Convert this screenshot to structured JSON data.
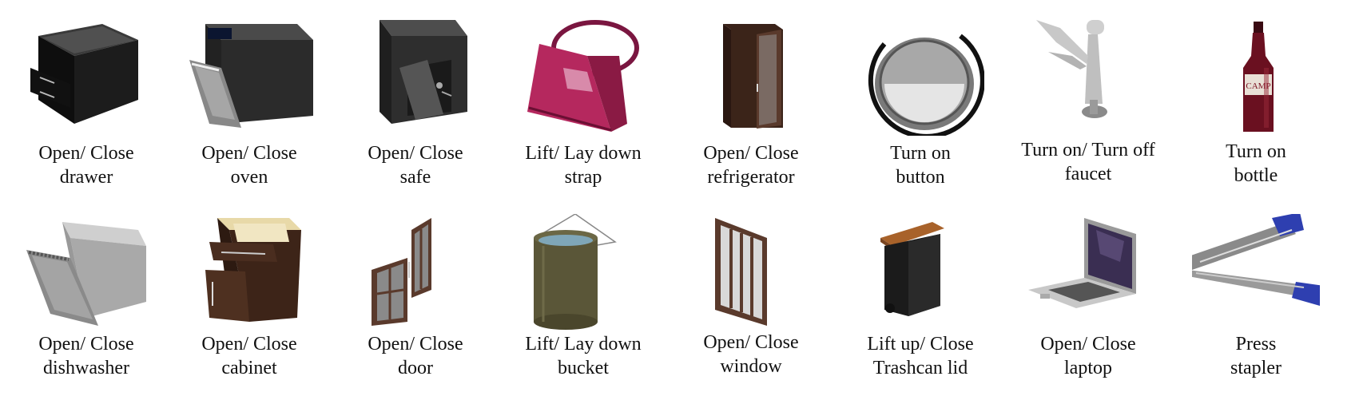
{
  "rows": [
    [
      {
        "id": "drawer",
        "line1": "Open/ Close",
        "line2": "drawer",
        "icon": "drawer-icon"
      },
      {
        "id": "oven",
        "line1": "Open/ Close",
        "line2": "oven",
        "icon": "oven-icon"
      },
      {
        "id": "safe",
        "line1": "Open/ Close",
        "line2": "safe",
        "icon": "safe-icon"
      },
      {
        "id": "strap",
        "line1": "Lift/ Lay down",
        "line2": "strap",
        "icon": "handbag-icon"
      },
      {
        "id": "refrigerator",
        "line1": "Open/ Close",
        "line2": "refrigerator",
        "icon": "refrigerator-icon"
      },
      {
        "id": "button",
        "line1": "Turn on",
        "line2": "button",
        "icon": "button-icon"
      },
      {
        "id": "faucet",
        "line1": "Turn on/ Turn off",
        "line2": "faucet",
        "icon": "faucet-icon"
      },
      {
        "id": "bottle",
        "line1": "Turn on",
        "line2": "bottle",
        "icon": "bottle-icon"
      }
    ],
    [
      {
        "id": "dishwasher",
        "line1": "Open/ Close",
        "line2": "dishwasher",
        "icon": "dishwasher-icon"
      },
      {
        "id": "cabinet",
        "line1": "Open/ Close",
        "line2": "cabinet",
        "icon": "cabinet-icon"
      },
      {
        "id": "door",
        "line1": "Open/ Close",
        "line2": "door",
        "icon": "door-icon"
      },
      {
        "id": "bucket",
        "line1": "Lift/ Lay down",
        "line2": "bucket",
        "icon": "bucket-icon"
      },
      {
        "id": "window",
        "line1": "Open/ Close",
        "line2": "window",
        "icon": "window-icon"
      },
      {
        "id": "trashcan",
        "line1": "Lift up/ Close",
        "line2": "Trashcan lid",
        "icon": "trashcan-icon"
      },
      {
        "id": "laptop",
        "line1": "Open/ Close",
        "line2": "laptop",
        "icon": "laptop-icon"
      },
      {
        "id": "stapler",
        "line1": "Press",
        "line2": "stapler",
        "icon": "stapler-icon"
      }
    ]
  ],
  "bottle_label": "CAMP"
}
